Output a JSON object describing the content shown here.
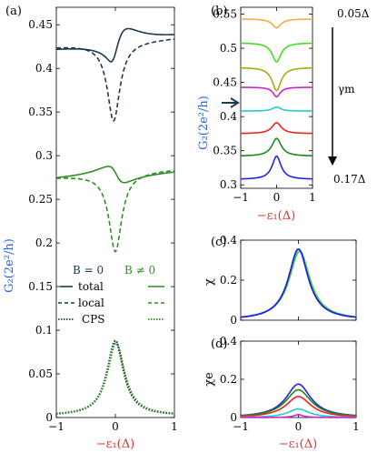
{
  "chart_data": [
    {
      "panel": "(a)",
      "type": "line",
      "xlabel": "−ε₁(Δ)",
      "ylabel": "G₂(2e²/h)",
      "xlim": [
        -1,
        1
      ],
      "ylim": [
        0,
        0.47
      ],
      "xticks": [
        "−1",
        "0",
        "1"
      ],
      "yticks": [
        "0",
        "0.05",
        "0.1",
        "0.15",
        "0.2",
        "0.25",
        "0.3",
        "0.35",
        "0.4",
        "0.45"
      ],
      "legend": {
        "headers": [
          "B = 0",
          "B ≠ 0"
        ],
        "rows": [
          "total",
          "local",
          "CPS"
        ]
      },
      "colors": {
        "B0": "#1c3a4a",
        "B1": "#2f8f22",
        "xlabel": "#e03030",
        "ylabel": "#2060ff"
      }
    },
    {
      "panel": "(b)",
      "type": "line",
      "xlabel": "−ε₁(Δ)",
      "ylabel": "G₂(2e²/h)",
      "xlim": [
        -1,
        1
      ],
      "ylim": [
        0.295,
        0.56
      ],
      "xticks": [
        "−1",
        "0",
        "1"
      ],
      "yticks": [
        "0.3",
        "0.35",
        "0.4",
        "0.45",
        "0.5",
        "0.55"
      ],
      "annotations": {
        "top": "0.05Δ",
        "bottom": "0.17Δ",
        "arrow": "γm"
      },
      "series": [
        {
          "color": "#f0b040",
          "base": 0.543,
          "amp": -0.013,
          "width": 0.15
        },
        {
          "color": "#44dd22",
          "base": 0.508,
          "amp": -0.028,
          "width": 0.15
        },
        {
          "color": "#aaaa10",
          "base": 0.472,
          "amp": -0.034,
          "width": 0.15
        },
        {
          "color": "#cc22cc",
          "base": 0.443,
          "amp": -0.014,
          "width": 0.12
        },
        {
          "color": "#22cccc",
          "base": 0.408,
          "amp": 0.006,
          "width": 0.14
        },
        {
          "color": "#ee2020",
          "base": 0.375,
          "amp": 0.016,
          "width": 0.16
        },
        {
          "color": "#1a8a1a",
          "base": 0.342,
          "amp": 0.026,
          "width": 0.16
        },
        {
          "color": "#2222ee",
          "base": 0.308,
          "amp": 0.034,
          "width": 0.15
        }
      ]
    },
    {
      "panel": "(c)",
      "type": "line",
      "ylabel": "χ",
      "xlim": [
        -1,
        1
      ],
      "ylim": [
        0,
        0.4
      ],
      "yticks": [
        "0",
        "0.2",
        "0.4"
      ],
      "series": [
        {
          "color": "#44dd22",
          "x0": 0.02,
          "peak": 0.345,
          "width": 0.22
        },
        {
          "color": "#2222ee",
          "x0": 0.0,
          "peak": 0.355,
          "width": 0.21
        }
      ]
    },
    {
      "panel": "(d)",
      "type": "line",
      "xlabel": "−ε₁(Δ)",
      "ylabel": "χe",
      "xlim": [
        -1,
        1
      ],
      "ylim": [
        0,
        0.4
      ],
      "xticks": [
        "−1",
        "0",
        "1"
      ],
      "yticks": [
        "0",
        "0.2",
        "0.4"
      ],
      "series": [
        {
          "color": "#2222ee",
          "peak": 0.175,
          "width": 0.26
        },
        {
          "color": "#1a8a1a",
          "peak": 0.145,
          "width": 0.27
        },
        {
          "color": "#ee2020",
          "peak": 0.11,
          "width": 0.26
        },
        {
          "color": "#22cccc",
          "peak": 0.045,
          "width": 0.22
        },
        {
          "color": "#cc22cc",
          "peak": 0.015,
          "width": 0.1
        }
      ]
    }
  ]
}
